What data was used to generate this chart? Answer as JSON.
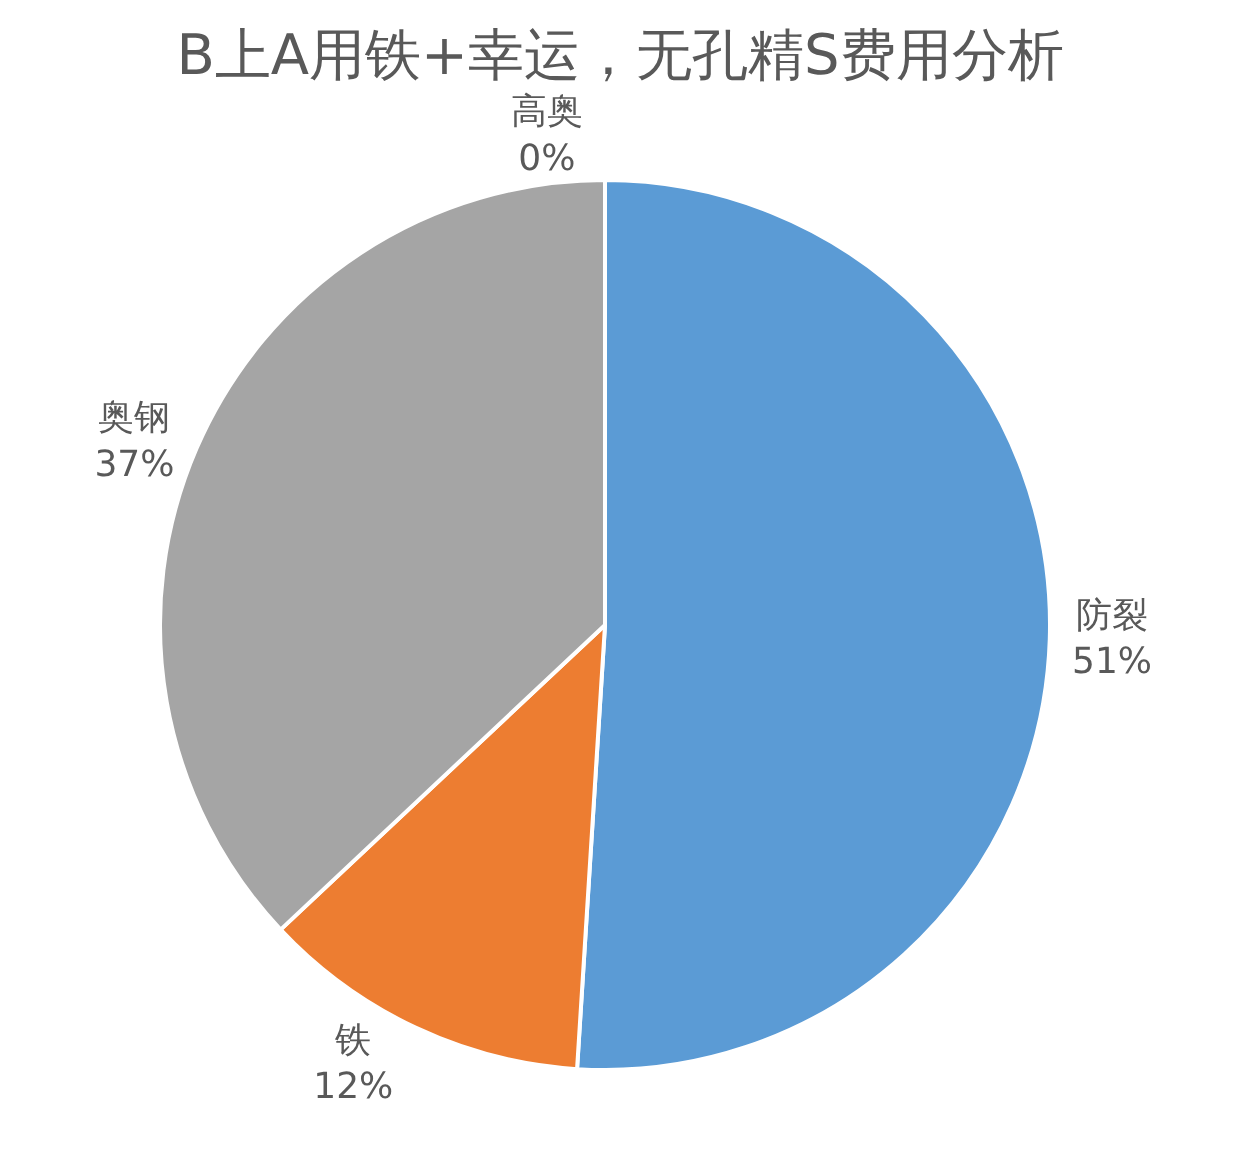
{
  "chart_data": {
    "type": "pie",
    "title": "B上A用铁+幸运，无孔精S费用分析",
    "categories": [
      "防裂",
      "铁",
      "奥钢",
      "高奥"
    ],
    "values": [
      51,
      12,
      37,
      0
    ],
    "value_labels": [
      "51%",
      "12%",
      "37%",
      "0%"
    ],
    "colors": [
      "#5b9bd5",
      "#ed7d31",
      "#a5a5a5",
      "#ffc000"
    ],
    "legend": false
  }
}
